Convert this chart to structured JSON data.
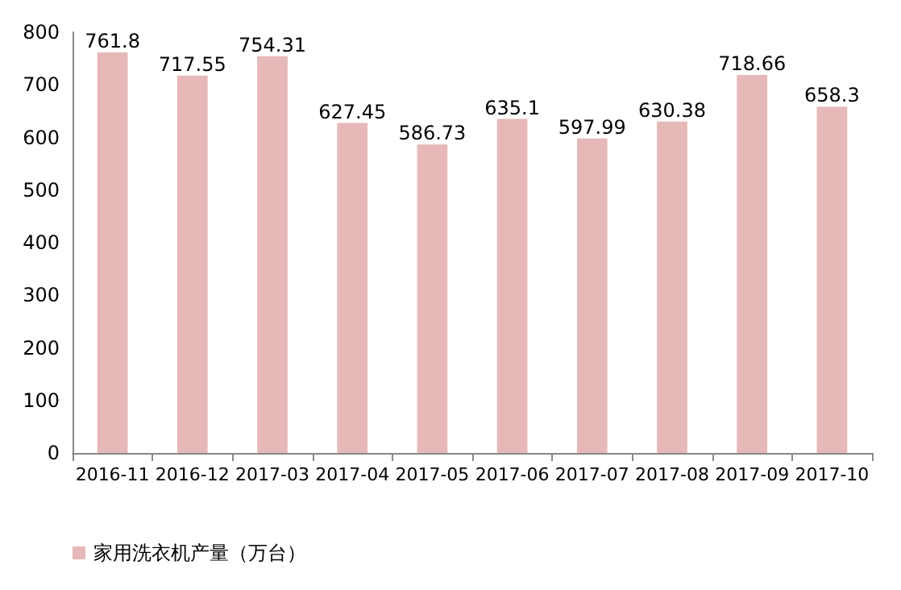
{
  "chart_data": {
    "type": "bar",
    "categories": [
      "2016-11",
      "2016-12",
      "2017-03",
      "2017-04",
      "2017-05",
      "2017-06",
      "2017-07",
      "2017-08",
      "2017-09",
      "2017-10"
    ],
    "series": [
      {
        "name": "家用洗衣机产量（万台）",
        "color": "#e6b9b8",
        "values": [
          761.8,
          717.55,
          754.31,
          627.45,
          586.73,
          635.1,
          597.99,
          630.38,
          718.66,
          658.3
        ]
      }
    ],
    "ylim": [
      0,
      800
    ],
    "yticks": [
      0,
      100,
      200,
      300,
      400,
      500,
      600,
      700,
      800
    ],
    "data_labels": true,
    "legend": "bottom left",
    "grid": false
  }
}
